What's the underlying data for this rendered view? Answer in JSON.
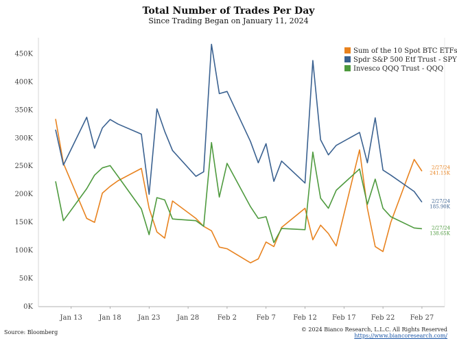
{
  "chart_data": {
    "type": "line",
    "title": "Total Number of Trades Per Day",
    "subtitle": "Since Trading Began on January 11, 2024",
    "ylim": [
      0,
      470000
    ],
    "yticks": [
      {
        "value": 0,
        "label": "0K"
      },
      {
        "value": 50000,
        "label": "50K"
      },
      {
        "value": 100000,
        "label": "100K"
      },
      {
        "value": 150000,
        "label": "150K"
      },
      {
        "value": 200000,
        "label": "200K"
      },
      {
        "value": 250000,
        "label": "250K"
      },
      {
        "value": 300000,
        "label": "300K"
      },
      {
        "value": 350000,
        "label": "350K"
      },
      {
        "value": 400000,
        "label": "400K"
      },
      {
        "value": 450000,
        "label": "450K"
      }
    ],
    "xticks": [
      {
        "day": 2,
        "label": "Jan 13"
      },
      {
        "day": 7,
        "label": "Jan 18"
      },
      {
        "day": 12,
        "label": "Jan 23"
      },
      {
        "day": 17,
        "label": "Jan 28"
      },
      {
        "day": 22,
        "label": "Feb 2"
      },
      {
        "day": 27,
        "label": "Feb 7"
      },
      {
        "day": 32,
        "label": "Feb 12"
      },
      {
        "day": 37,
        "label": "Feb 17"
      },
      {
        "day": 42,
        "label": "Feb 22"
      },
      {
        "day": 47,
        "label": "Feb 27"
      }
    ],
    "x_days": [
      0,
      1,
      4,
      5,
      6,
      7,
      8,
      11,
      12,
      13,
      14,
      15,
      18,
      19,
      20,
      21,
      22,
      25,
      26,
      27,
      28,
      29,
      32,
      33,
      34,
      35,
      36,
      39,
      40,
      41,
      42,
      43,
      46,
      47
    ],
    "series": [
      {
        "name": "Sum of the 10 Spot BTC ETFs",
        "color": "#e8821e",
        "values": [
          334000,
          255000,
          157000,
          150000,
          202000,
          214000,
          224000,
          246000,
          175000,
          133000,
          122000,
          188000,
          157000,
          143000,
          135000,
          106000,
          103000,
          78000,
          85000,
          115000,
          107000,
          141000,
          175000,
          119000,
          145000,
          130000,
          108000,
          279000,
          175000,
          107000,
          98000,
          150000,
          262000,
          241150
        ],
        "end_label_date": "2/27/24",
        "end_label_value": "241.15K"
      },
      {
        "name": "Spdr S&P 500 Etf Trust - SPY",
        "color": "#3a6190",
        "values": [
          315000,
          252000,
          337000,
          282000,
          318000,
          333000,
          325000,
          307000,
          200000,
          352000,
          312000,
          278000,
          232000,
          240000,
          467000,
          379000,
          383000,
          294000,
          256000,
          290000,
          223000,
          259000,
          220000,
          438000,
          297000,
          270000,
          287000,
          310000,
          256000,
          336000,
          243000,
          234000,
          205000,
          185900
        ],
        "end_label_date": "2/27/24",
        "end_label_value": "185.90K"
      },
      {
        "name": "Invesco QQQ Trust - QQQ",
        "color": "#4e9a3e",
        "values": [
          223000,
          153000,
          210000,
          234000,
          247000,
          251000,
          232000,
          174000,
          128000,
          194000,
          190000,
          156000,
          153000,
          143000,
          292000,
          195000,
          255000,
          178000,
          157000,
          160000,
          114000,
          139000,
          137000,
          275000,
          193000,
          175000,
          207000,
          245000,
          182000,
          227000,
          175000,
          160000,
          140000,
          138650
        ],
        "end_label_date": "2/27/24",
        "end_label_value": "138.65K"
      }
    ],
    "legend_position": "top-right",
    "grid": false
  },
  "footer": {
    "source": "Source: Bloomberg",
    "copyright": "© 2024 Bianco Research, L.L.C. All Rights Reserved",
    "url": "https://www.biancoresearch.com/"
  }
}
